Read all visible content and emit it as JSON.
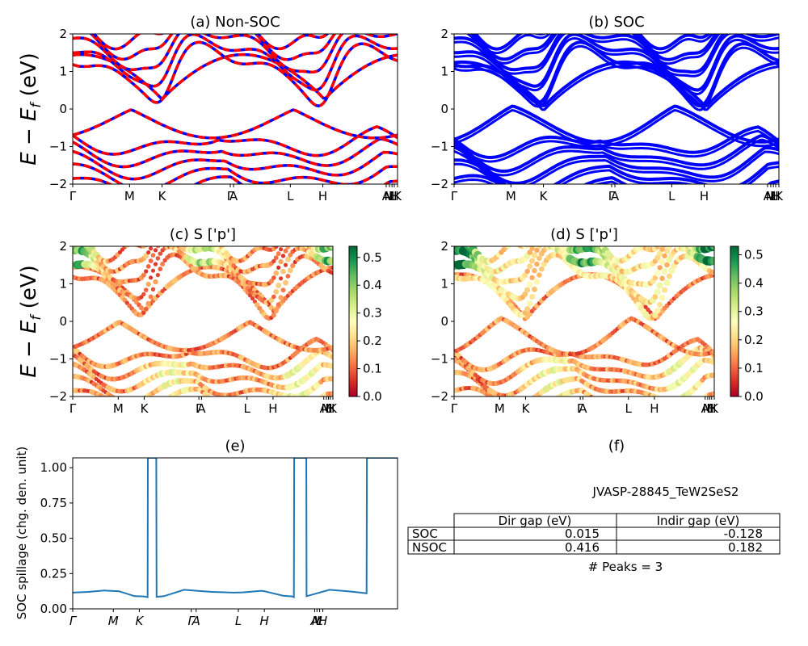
{
  "chart_data": [
    {
      "id": "a",
      "type": "line",
      "title": "(a) Non-SOC",
      "ylabel_main": "E − E",
      "ylabel_sub": "f",
      "ylabel_unit": " (eV)",
      "ylim": [
        -2,
        2
      ],
      "yticks": [
        "−2",
        "−1",
        "0",
        "1",
        "2"
      ],
      "kpath_labels": [
        "Γ",
        "M",
        "K",
        "Γ",
        "A",
        "L",
        "H",
        "A",
        "M",
        "L",
        "H",
        "K"
      ],
      "series": [
        {
          "color": "#0000ff",
          "style": "solid"
        },
        {
          "color": "#ff0000",
          "style": "dashed"
        }
      ]
    },
    {
      "id": "b",
      "type": "line",
      "title": "(b) SOC",
      "ylim": [
        -2,
        2
      ],
      "yticks": [
        "−2",
        "−1",
        "0",
        "1",
        "2"
      ],
      "kpath_labels": [
        "Γ",
        "M",
        "K",
        "Γ",
        "A",
        "L",
        "H",
        "A",
        "M",
        "L",
        "H",
        "K"
      ],
      "series": [
        {
          "color": "#0000ff",
          "style": "solid"
        }
      ]
    },
    {
      "id": "c",
      "type": "scatter",
      "title": "(c)  S ['p']",
      "ylabel_main": "E − E",
      "ylabel_sub": "f",
      "ylabel_unit": " (eV)",
      "ylim": [
        -2,
        2
      ],
      "yticks": [
        "−2",
        "−1",
        "0",
        "1",
        "2"
      ],
      "kpath_labels": [
        "Γ",
        "M",
        "K",
        "Γ",
        "A",
        "L",
        "H",
        "A",
        "M",
        "L",
        "H",
        "K"
      ],
      "colorbar": {
        "ticks": [
          "0.0",
          "0.1",
          "0.2",
          "0.3",
          "0.4",
          "0.5"
        ],
        "range": [
          0,
          0.54
        ],
        "cmap": "RdYlGn"
      }
    },
    {
      "id": "d",
      "type": "scatter",
      "title": "(d) S ['p']",
      "ylim": [
        -2,
        2
      ],
      "yticks": [
        "−2",
        "−1",
        "0",
        "1",
        "2"
      ],
      "kpath_labels": [
        "Γ",
        "M",
        "K",
        "Γ",
        "A",
        "L",
        "H",
        "A",
        "M",
        "L",
        "H",
        "K"
      ],
      "colorbar": {
        "ticks": [
          "0.0",
          "0.1",
          "0.2",
          "0.3",
          "0.4",
          "0.5"
        ],
        "range": [
          0,
          0.53
        ],
        "cmap": "RdYlGn"
      }
    },
    {
      "id": "e",
      "type": "line",
      "title": "(e)",
      "ylabel": "SOC spillage (chg. den. unit)",
      "ylim": [
        0,
        1.07
      ],
      "yticks": [
        "0.00",
        "0.25",
        "0.50",
        "0.75",
        "1.00"
      ],
      "xticklabels": [
        "Γ",
        "M",
        "K",
        "Γ",
        "A",
        "L",
        "H",
        "A",
        "M",
        "L",
        "H"
      ],
      "x": [
        0,
        0.5,
        1.0,
        1.5,
        2.0,
        2.3,
        2.42,
        2.43,
        2.7,
        2.71,
        2.95,
        3.6,
        4.5,
        5.2,
        5.5,
        6.1,
        6.2,
        6.8,
        7.1,
        7.15,
        7.16,
        7.55,
        7.56,
        8.3,
        8.9,
        9.3,
        9.5,
        9.51,
        9.9,
        9.91,
        10.5
      ],
      "values": [
        0.115,
        0.12,
        0.13,
        0.125,
        0.09,
        0.088,
        0.083,
        1.07,
        1.07,
        0.085,
        0.09,
        0.135,
        0.12,
        0.115,
        0.117,
        0.128,
        0.125,
        0.093,
        0.088,
        0.083,
        1.07,
        1.07,
        0.09,
        0.135,
        0.125,
        0.115,
        0.11,
        1.07,
        1.07,
        1.07,
        1.07
      ],
      "color": "#1f77b4"
    }
  ],
  "table": {
    "title": "(f)",
    "material": "JVASP-28845_TeW2SeS2",
    "headers": [
      "",
      "Dir gap (eV)",
      "Indir gap (eV)"
    ],
    "rows": [
      {
        "label": "SOC",
        "dir": "0.015",
        "indir": "-0.128"
      },
      {
        "label": "NSOC",
        "dir": "0.416",
        "indir": "0.182"
      }
    ],
    "peaks": "# Peaks = 3"
  }
}
